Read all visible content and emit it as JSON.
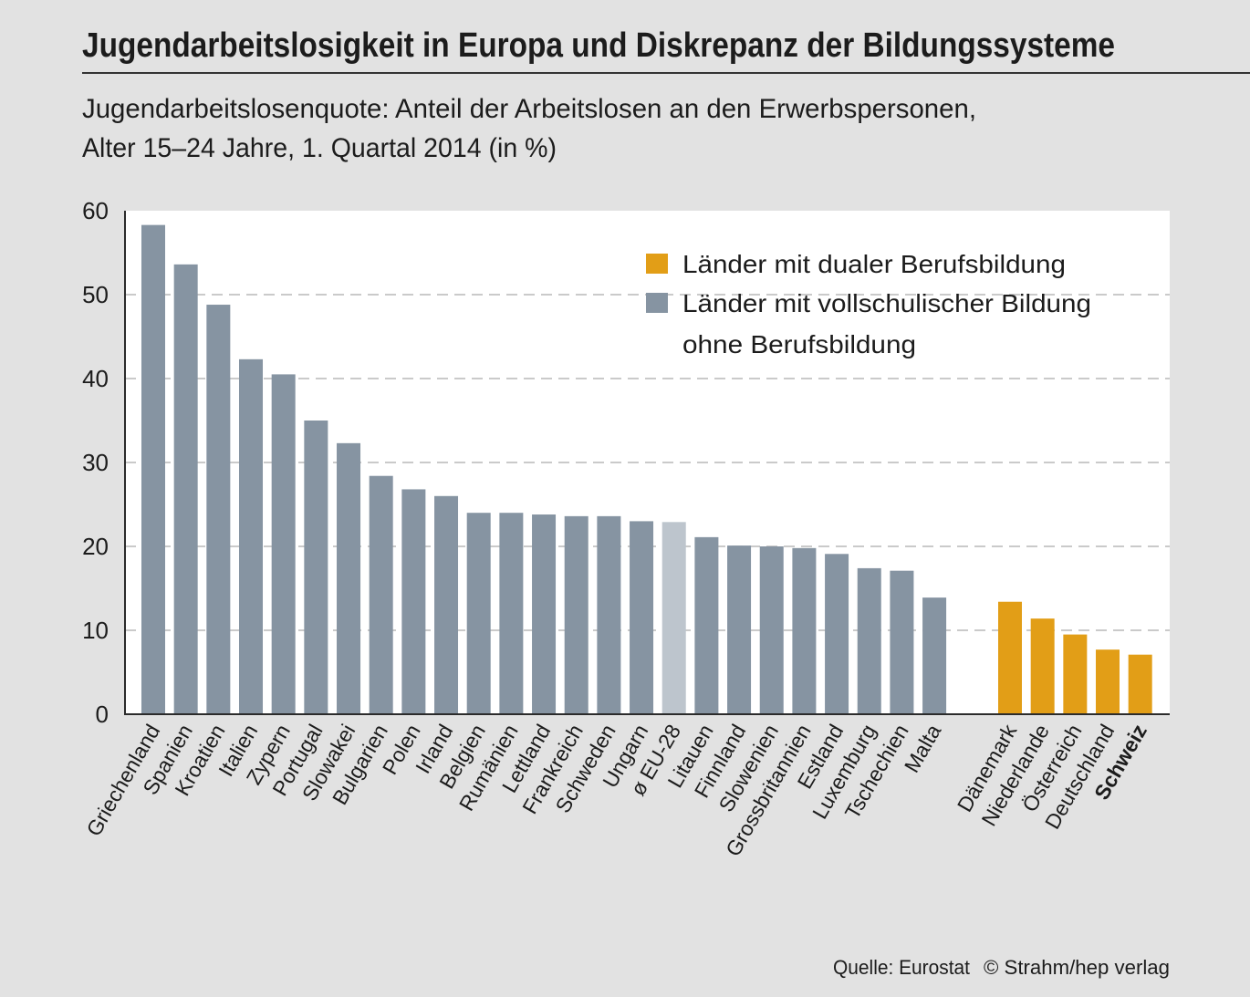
{
  "chart_data": {
    "type": "bar",
    "title": "Jugendarbeitslosigkeit in Europa und Diskrepanz der Bildungssysteme",
    "subtitle": [
      "Jugendarbeitslosenquote: Anteil der Arbeitslosen an den Erwerbspersonen,",
      "Alter 15–24 Jahre, 1. Quartal 2014 (in %)"
    ],
    "xlabel": "",
    "ylabel": "",
    "ylim": [
      0,
      60
    ],
    "yticks": [
      0,
      10,
      20,
      30,
      40,
      50,
      60
    ],
    "grid": true,
    "legend": [
      {
        "color": "#e29e17",
        "lines": [
          "Länder mit dualer Berufsbildung"
        ]
      },
      {
        "color": "#8694a2",
        "lines": [
          "Länder mit vollschulischer Bildung",
          "ohne Berufsbildung"
        ]
      }
    ],
    "categories": [
      "Griechenland",
      "Spanien",
      "Kroatien",
      "Italien",
      "Zypern",
      "Portugal",
      "Slowakei",
      "Bulgarien",
      "Polen",
      "Irland",
      "Belgien",
      "Rumänien",
      "Lettland",
      "Frankreich",
      "Schweden",
      "Ungarn",
      "ø EU-28",
      "Litauen",
      "Finnland",
      "Slowenien",
      "Grossbritannien",
      "Estland",
      "Luxemburg",
      "Tschechien",
      "Malta",
      "Dänemark",
      "Niederlande",
      "Österreich",
      "Deutschland",
      "Schweiz"
    ],
    "values": [
      58.3,
      53.6,
      48.8,
      42.3,
      40.5,
      35.0,
      32.3,
      28.4,
      26.8,
      26.0,
      24.0,
      24.0,
      23.8,
      23.6,
      23.6,
      23.0,
      22.9,
      21.1,
      20.1,
      20.0,
      19.8,
      19.1,
      17.4,
      17.1,
      13.9,
      13.4,
      11.4,
      9.5,
      7.7,
      7.1
    ],
    "bar_colors": [
      "#8694a2",
      "#8694a2",
      "#8694a2",
      "#8694a2",
      "#8694a2",
      "#8694a2",
      "#8694a2",
      "#8694a2",
      "#8694a2",
      "#8694a2",
      "#8694a2",
      "#8694a2",
      "#8694a2",
      "#8694a2",
      "#8694a2",
      "#8694a2",
      "#bdc5cd",
      "#8694a2",
      "#8694a2",
      "#8694a2",
      "#8694a2",
      "#8694a2",
      "#8694a2",
      "#8694a2",
      "#8694a2",
      "#e29e17",
      "#e29e17",
      "#e29e17",
      "#e29e17",
      "#e29e17"
    ],
    "group_break_index": 25,
    "highlight_index": 29,
    "source": [
      "Quelle: Eurostat",
      "© Strahm/hep verlag"
    ]
  }
}
